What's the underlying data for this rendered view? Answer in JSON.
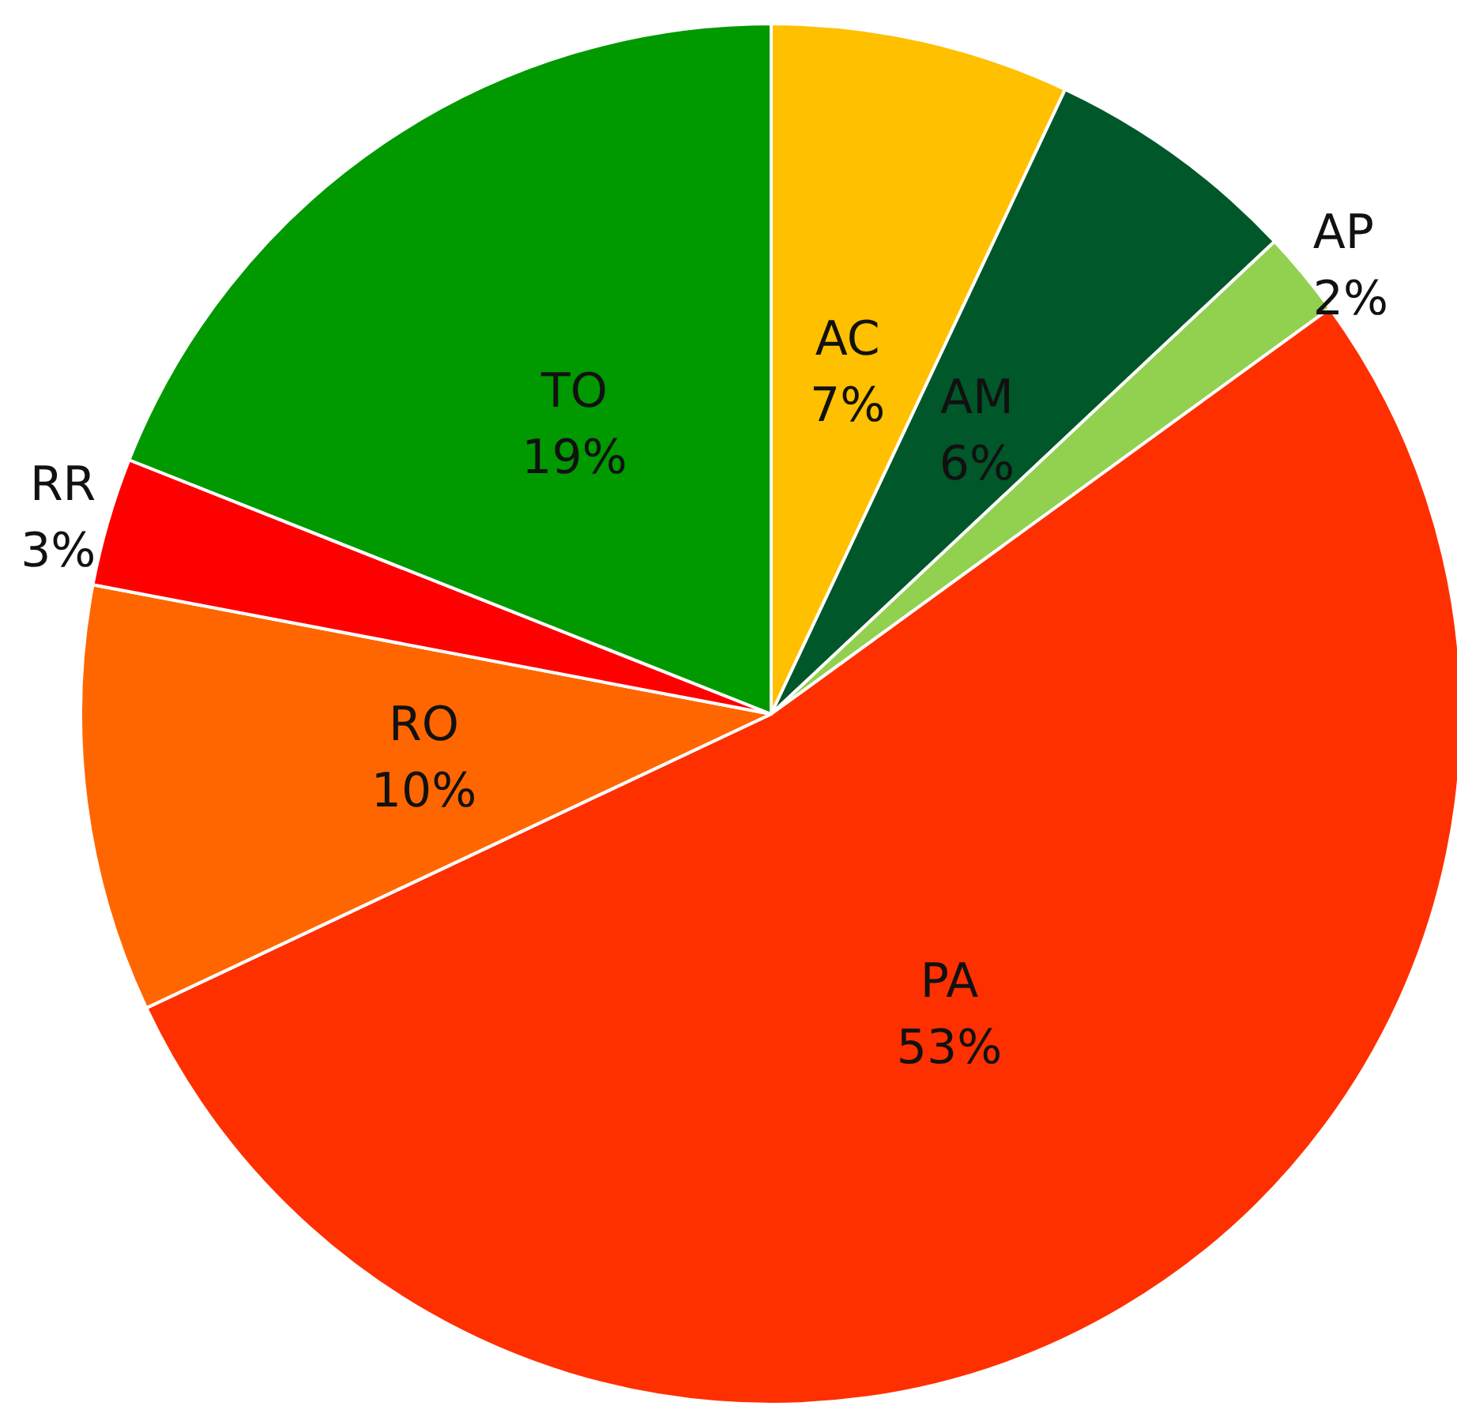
{
  "chart_data": {
    "type": "pie",
    "categories": [
      "AC",
      "AM",
      "AP",
      "PA",
      "RO",
      "RR",
      "TO"
    ],
    "values": [
      7,
      6,
      2,
      53,
      10,
      3,
      19
    ],
    "value_labels": [
      "7%",
      "6%",
      "2%",
      "53%",
      "10%",
      "3%",
      "19%"
    ],
    "colors": [
      "#ffc000",
      "#00572a",
      "#92d050",
      "#ff3000",
      "#ff6600",
      "#ff0000",
      "#009900"
    ],
    "legend": false
  }
}
